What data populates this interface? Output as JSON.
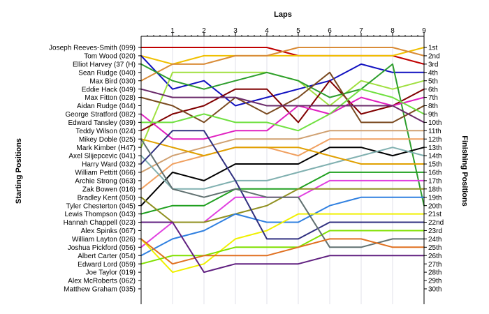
{
  "chart_data": {
    "type": "line",
    "title": "",
    "top_axis_title": "Laps",
    "left_axis_title": "Starting Positions",
    "right_axis_title": "Finishing Positions",
    "x": [
      0,
      1,
      2,
      3,
      4,
      5,
      6,
      7,
      8,
      9
    ],
    "x_tick_labels": [
      "1",
      "2",
      "3",
      "4",
      "5",
      "6",
      "7",
      "8",
      "9"
    ],
    "xlim": [
      0,
      9
    ],
    "ylim": [
      1,
      30
    ],
    "y_reversed": true,
    "grid": true,
    "driver_labels": [
      "Joseph Reeves-Smith (099)",
      "Tom Wood (020)",
      "Elliot Harvey (37 (H)",
      "Sean Rudge (040)",
      "Max Bird (030)",
      "Eddie Hack (049)",
      "Max Fitton (028)",
      "Aidan Rudge (044)",
      "George Stratford (082)",
      "Edward Tansley (039)",
      "Teddy Wilson (024)",
      "Mikey Doble (025)",
      "Mark Kimber (H47)",
      "Axel Slijepcevic (041)",
      "Harry Ward (032)",
      "William Pettitt (066)",
      "Archie Strong (063)",
      "Zak Bowen (016)",
      "Bradley Kent (050)",
      "Tyler Chesterton (045)",
      "Lewis Thompson (043)",
      "Hannah Chappell (023)",
      "Alex Spinks (067)",
      "William Layton (026)",
      "Joshua Pickford (056)",
      "Albert Carter (054)",
      "Edward Lord (059)",
      "Joe Taylor (019)",
      "Alex McRoberts (062)",
      "Matthew Graham (035)"
    ],
    "finish_labels": [
      "1st",
      "2nd",
      "3rd",
      "4th",
      "5th",
      "6th",
      "7th",
      "8th",
      "9th",
      "10th",
      "11th",
      "12th",
      "13th",
      "14th",
      "15th",
      "16th",
      "17th",
      "18th",
      "19th",
      "20th",
      "21st",
      "22nd",
      "23rd",
      "24th",
      "25th",
      "26th",
      "27th",
      "28th",
      "29th",
      "30th"
    ],
    "series": [
      {
        "color": "#c00000",
        "values": [
          1,
          1,
          1,
          1,
          1,
          2,
          2,
          2,
          2,
          3
        ]
      },
      {
        "color": "#f0c000",
        "values": [
          2,
          3,
          2,
          2,
          2,
          2,
          2,
          2,
          2,
          1
        ]
      },
      {
        "color": "#d98c38",
        "values": [
          5,
          3,
          3,
          2,
          2,
          1,
          1,
          1,
          1,
          2
        ]
      },
      {
        "color": "#1010c0",
        "values": [
          2,
          6,
          5,
          8,
          7,
          6,
          5,
          3,
          4,
          4
        ]
      },
      {
        "color": "#a0e040",
        "values": [
          13,
          4,
          4,
          4,
          4,
          5,
          8,
          5,
          6,
          5
        ]
      },
      {
        "color": "#800000",
        "values": [
          11,
          9,
          8,
          6,
          6,
          10,
          5,
          9,
          8,
          6
        ]
      },
      {
        "color": "#2d9e2d",
        "values": [
          3,
          5,
          6,
          5,
          4,
          5,
          7,
          6,
          3,
          20
        ]
      },
      {
        "color": "#e020c0",
        "values": [
          9,
          12,
          12,
          11,
          11,
          8,
          9,
          7,
          8,
          7
        ]
      },
      {
        "color": "#7a4a20",
        "values": [
          7,
          8,
          10,
          7,
          9,
          7,
          4,
          10,
          10,
          8
        ]
      },
      {
        "color": "#70e040",
        "values": [
          10,
          10,
          9,
          10,
          10,
          11,
          9,
          6,
          7,
          9
        ]
      },
      {
        "color": "#6a2a6a",
        "values": [
          6,
          7,
          7,
          7,
          8,
          8,
          8,
          8,
          8,
          10
        ]
      },
      {
        "color": "#d0a070",
        "values": [
          16,
          14,
          13,
          12,
          12,
          12,
          11,
          11,
          11,
          11
        ]
      },
      {
        "color": "#f0a060",
        "values": [
          18,
          15,
          14,
          13,
          13,
          14,
          12,
          12,
          12,
          12
        ]
      },
      {
        "color": "#000000",
        "values": [
          20,
          16,
          17,
          15,
          15,
          15,
          13,
          13,
          14,
          13
        ]
      },
      {
        "color": "#80b0b0",
        "values": [
          14,
          18,
          18,
          17,
          17,
          16,
          15,
          14,
          13,
          14
        ]
      },
      {
        "color": "#e0a000",
        "values": [
          12,
          13,
          14,
          13,
          13,
          13,
          14,
          15,
          15,
          15
        ]
      },
      {
        "color": "#20a020",
        "values": [
          21,
          20,
          20,
          18,
          18,
          18,
          16,
          16,
          16,
          16
        ]
      },
      {
        "color": "#e040e0",
        "values": [
          25,
          22,
          22,
          19,
          19,
          19,
          17,
          17,
          17,
          17
        ]
      },
      {
        "color": "#909020",
        "values": [
          19,
          22,
          22,
          21,
          20,
          18,
          18,
          18,
          18,
          18
        ]
      },
      {
        "color": "#3080e0",
        "values": [
          26,
          24,
          23,
          21,
          22,
          22,
          20,
          19,
          19,
          19
        ]
      },
      {
        "color": "#f0f000",
        "values": [
          24,
          28,
          27,
          24,
          23,
          21,
          21,
          21,
          21,
          21
        ]
      },
      {
        "color": "#303080",
        "values": [
          15,
          11,
          11,
          17,
          24,
          24,
          22,
          22,
          22,
          22
        ]
      },
      {
        "color": "#80e000",
        "values": [
          27,
          26,
          26,
          25,
          25,
          25,
          23,
          23,
          23,
          23
        ]
      },
      {
        "color": "#607070",
        "values": [
          12,
          18,
          19,
          18,
          19,
          19,
          25,
          25,
          24,
          24
        ]
      },
      {
        "color": "#e07020",
        "values": [
          24,
          27,
          26,
          26,
          26,
          25,
          24,
          24,
          25,
          25
        ]
      },
      {
        "color": "#602080",
        "values": [
          22,
          22,
          28,
          27,
          27,
          27,
          26,
          26,
          26,
          26
        ]
      }
    ]
  }
}
